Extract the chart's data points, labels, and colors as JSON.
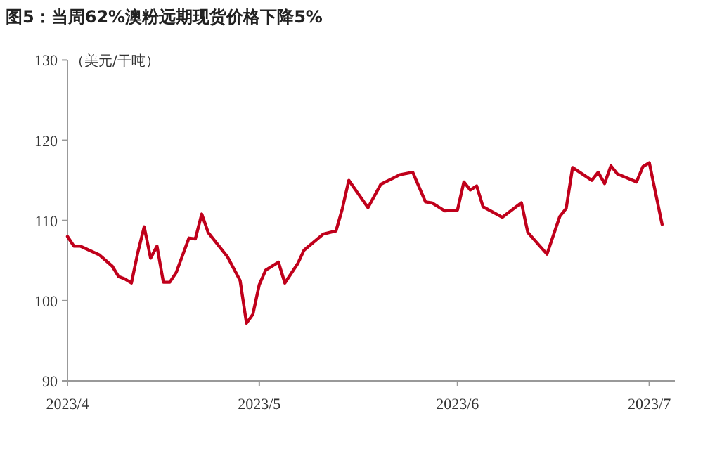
{
  "chart_data": {
    "type": "line",
    "title": "图5：当周62%澳粉远期现货价格下降5%",
    "ylabel": "（美元/干吨）",
    "x": [
      "2023-04-01",
      "2023-04-02",
      "2023-04-03",
      "2023-04-06",
      "2023-04-08",
      "2023-04-09",
      "2023-04-10",
      "2023-04-11",
      "2023-04-12",
      "2023-04-13",
      "2023-04-14",
      "2023-04-15",
      "2023-04-16",
      "2023-04-17",
      "2023-04-18",
      "2023-04-20",
      "2023-04-21",
      "2023-04-22",
      "2023-04-23",
      "2023-04-26",
      "2023-04-28",
      "2023-04-29",
      "2023-04-30",
      "2023-05-01",
      "2023-05-02",
      "2023-05-04",
      "2023-05-05",
      "2023-05-07",
      "2023-05-08",
      "2023-05-11",
      "2023-05-13",
      "2023-05-14",
      "2023-05-15",
      "2023-05-18",
      "2023-05-20",
      "2023-05-23",
      "2023-05-25",
      "2023-05-27",
      "2023-05-28",
      "2023-05-30",
      "2023-06-01",
      "2023-06-02",
      "2023-06-03",
      "2023-06-04",
      "2023-06-05",
      "2023-06-08",
      "2023-06-11",
      "2023-06-12",
      "2023-06-15",
      "2023-06-17",
      "2023-06-18",
      "2023-06-19",
      "2023-06-22",
      "2023-06-23",
      "2023-06-24",
      "2023-06-25",
      "2023-06-26",
      "2023-06-29",
      "2023-06-30",
      "2023-07-01",
      "2023-07-03"
    ],
    "values": [
      108,
      106.8,
      106.8,
      105.7,
      104.3,
      103,
      102.7,
      102.2,
      106,
      109.2,
      105.3,
      106.8,
      102.3,
      102.3,
      103.5,
      107.8,
      107.7,
      110.8,
      108.5,
      105.5,
      102.5,
      97.2,
      98.3,
      102,
      103.8,
      104.8,
      102.2,
      104.6,
      106.3,
      108.3,
      108.7,
      111.5,
      115,
      111.6,
      114.5,
      115.7,
      116,
      112.3,
      112.2,
      111.2,
      111.3,
      114.8,
      113.8,
      114.3,
      111.7,
      110.4,
      112.2,
      108.5,
      105.8,
      110.5,
      111.5,
      116.6,
      115,
      116,
      114.6,
      116.8,
      115.8,
      114.8,
      116.7,
      117.2,
      109.5
    ],
    "color": "#c0001b",
    "xlim": [
      "2023-04-01",
      "2023-07-05"
    ],
    "xticks": [
      {
        "value": "2023-04-01",
        "label": "2023/4"
      },
      {
        "value": "2023-05-01",
        "label": "2023/5"
      },
      {
        "value": "2023-06-01",
        "label": "2023/6"
      },
      {
        "value": "2023-07-01",
        "label": "2023/7"
      }
    ],
    "ylim": [
      90,
      130
    ],
    "yticks": [
      90,
      100,
      110,
      120,
      130
    ]
  }
}
